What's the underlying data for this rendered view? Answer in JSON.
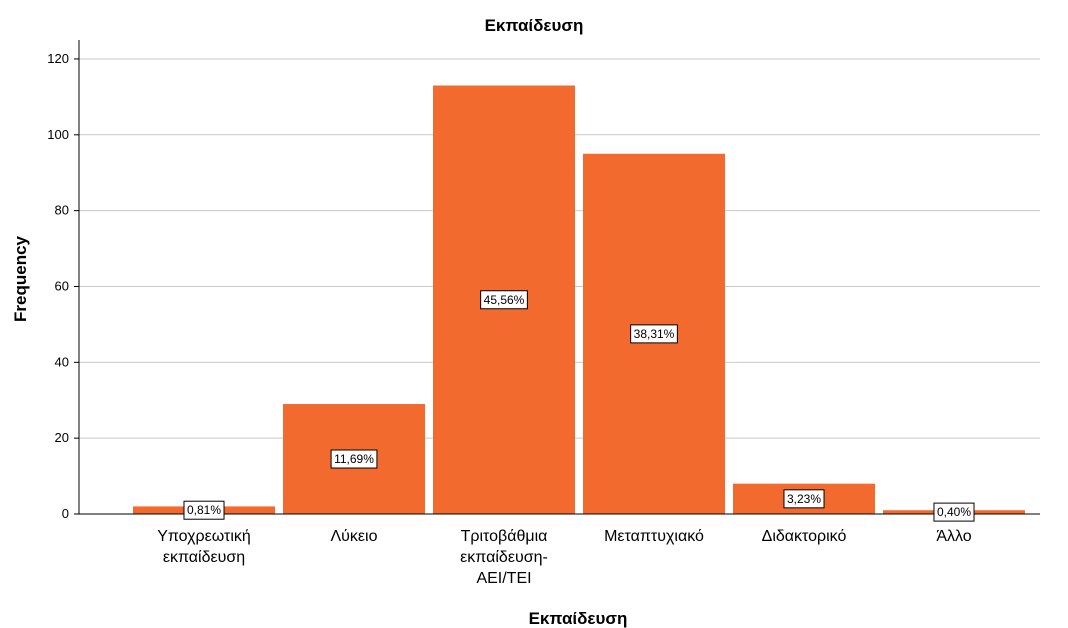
{
  "chart_data": {
    "type": "bar",
    "title": "Εκπαίδευση",
    "xlabel": "Εκπαίδευση",
    "ylabel": "Frequency",
    "ylim": [
      0,
      125
    ],
    "yticks": [
      0,
      20,
      40,
      60,
      80,
      100,
      120
    ],
    "grid": true,
    "bar_color": "#f26a2e",
    "categories": [
      [
        "Υποχρεωτική",
        "εκπαίδευση"
      ],
      [
        "Λύκειο"
      ],
      [
        "Τριτοβάθμια",
        "εκπαίδευση-",
        "ΑΕΙ/ΤΕΙ"
      ],
      [
        "Μεταπτυχιακό"
      ],
      [
        "Διδακτορικό"
      ],
      [
        "Άλλο"
      ]
    ],
    "values": [
      2,
      29,
      113,
      95,
      8,
      1
    ],
    "data_labels": [
      "0,81%",
      "11,69%",
      "45,56%",
      "38,31%",
      "3,23%",
      "0,40%"
    ]
  }
}
